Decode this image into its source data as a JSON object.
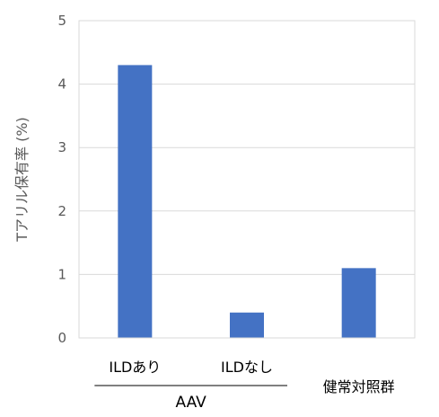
{
  "chart_data": {
    "type": "bar",
    "categories": [
      "ILDあり",
      "ILDなし",
      "健常対照群"
    ],
    "values": [
      4.3,
      0.4,
      1.1
    ],
    "ylabel": "Tアリル保有率 (%)",
    "ylim": [
      0,
      5
    ],
    "yticks": [
      0,
      1,
      2,
      3,
      4,
      5
    ],
    "grid": true,
    "group_label": "AAV",
    "bar_color": "#4472c4"
  }
}
